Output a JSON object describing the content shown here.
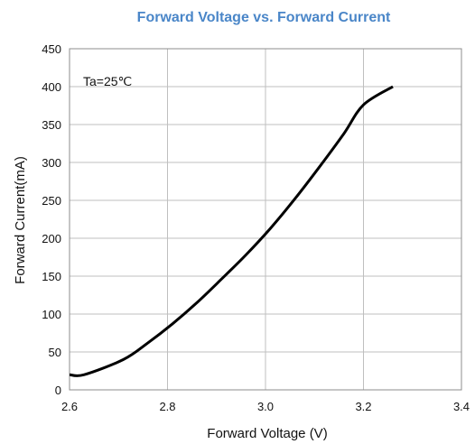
{
  "chart_data": {
    "type": "line",
    "title": "Forward Voltage vs. Forward Current",
    "xlabel": "Forward Voltage (V)",
    "ylabel": "Forward Current(mA)",
    "annotation": "Ta=25℃",
    "xlim": [
      2.6,
      3.4
    ],
    "ylim": [
      0,
      450
    ],
    "x_ticks": [
      "2.6",
      "2.8",
      "3.0",
      "3.2",
      "3.4"
    ],
    "y_ticks": [
      "0",
      "50",
      "100",
      "150",
      "200",
      "250",
      "300",
      "350",
      "400",
      "450"
    ],
    "grid": true,
    "series": [
      {
        "x": [
          2.6,
          2.63,
          2.71,
          2.76,
          2.81,
          2.86,
          2.91,
          2.96,
          3.01,
          3.06,
          3.11,
          3.16,
          3.2,
          3.26
        ],
        "y": [
          20,
          20,
          40,
          62,
          87,
          115,
          146,
          178,
          213,
          252,
          294,
          338,
          376,
          400
        ]
      }
    ],
    "colors": {
      "title": "#4a86c8",
      "line": "#000000",
      "grid": "#bfbfbf",
      "axis": "#8c8c8c"
    }
  }
}
